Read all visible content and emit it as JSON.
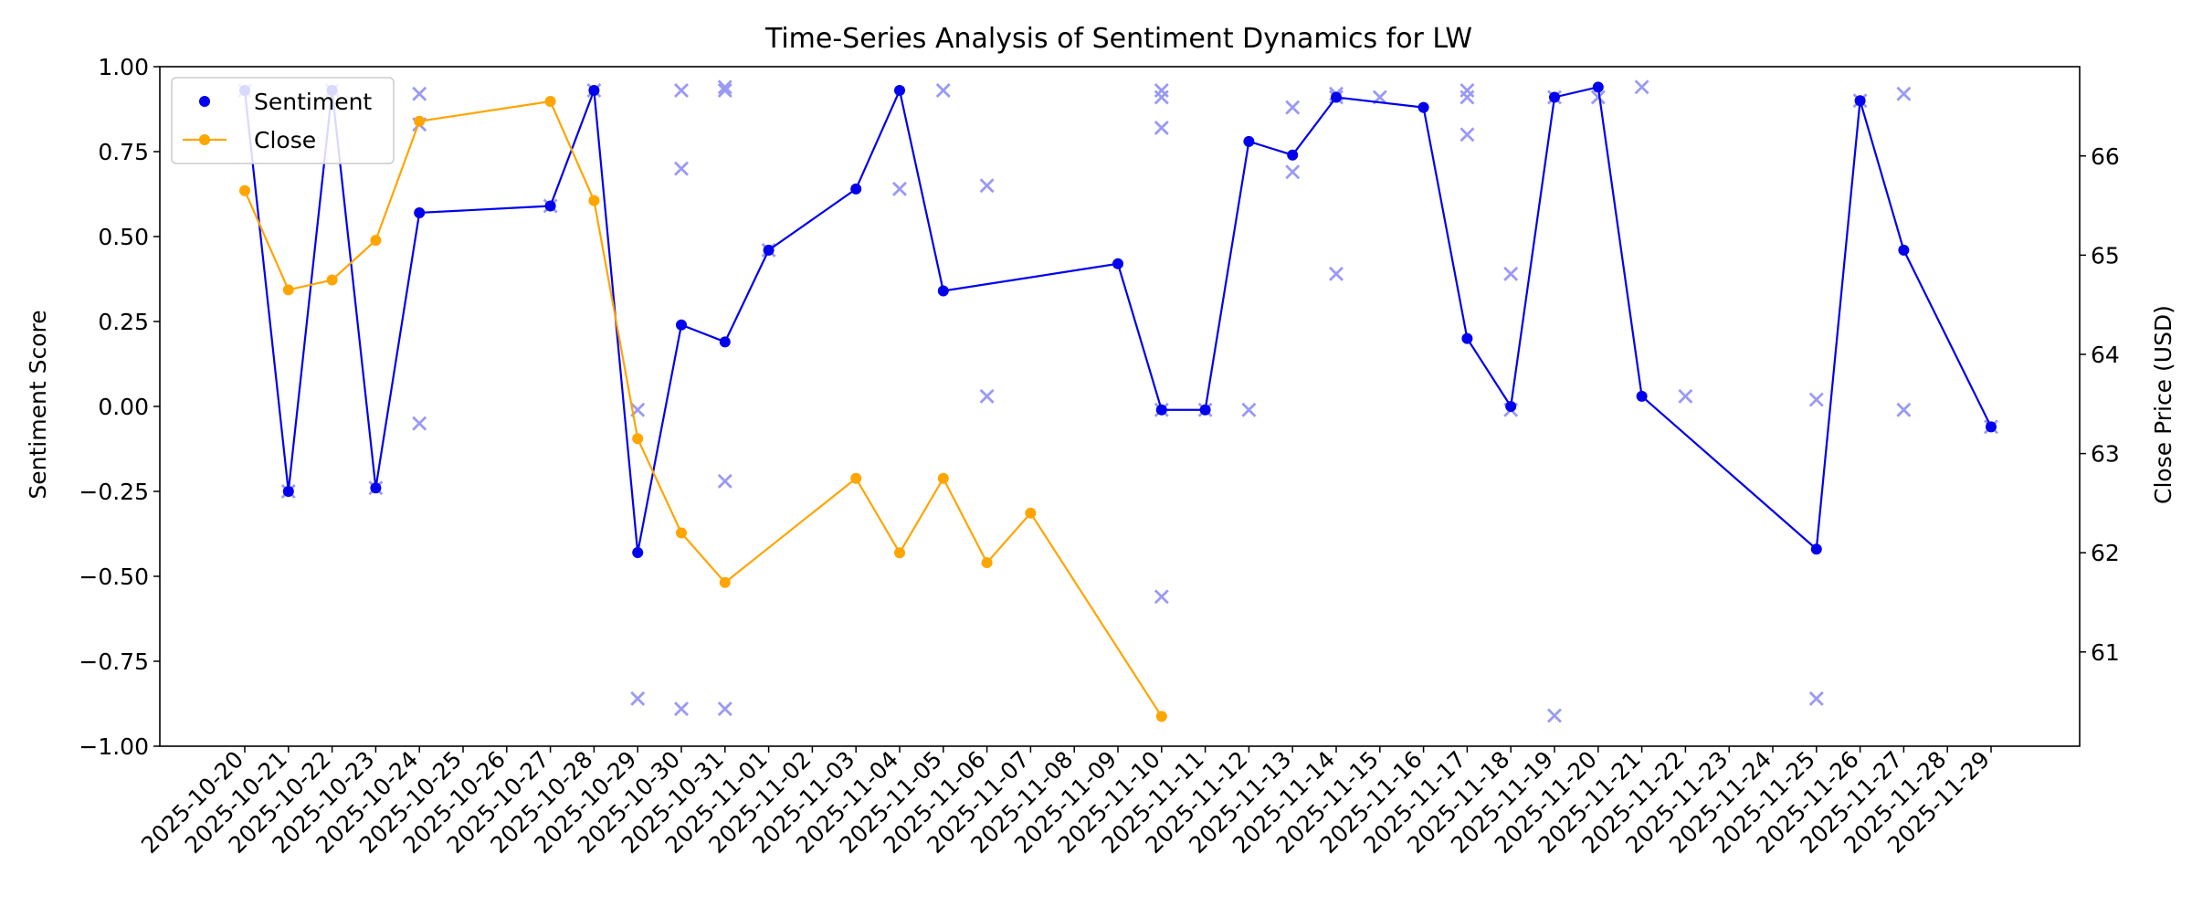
{
  "chart_data": {
    "type": "line",
    "title": "Time-Series Analysis of Sentiment Dynamics for LW",
    "left_axis_label": "Sentiment Score",
    "right_axis_label": "Close Price (USD)",
    "left_ylim": [
      -1.0,
      1.0
    ],
    "right_ylim": [
      60.05,
      66.9
    ],
    "left_ticks": [
      "−1.00",
      "−0.75",
      "−0.50",
      "−0.25",
      "0.00",
      "0.25",
      "0.50",
      "0.75",
      "1.00"
    ],
    "left_tick_values": [
      -1.0,
      -0.75,
      -0.5,
      -0.25,
      0.0,
      0.25,
      0.5,
      0.75,
      1.0
    ],
    "right_ticks": [
      "61",
      "62",
      "63",
      "64",
      "65",
      "66"
    ],
    "right_tick_values": [
      61,
      62,
      63,
      64,
      65,
      66
    ],
    "dates": [
      "2025-10-20",
      "2025-10-21",
      "2025-10-22",
      "2025-10-23",
      "2025-10-24",
      "2025-10-25",
      "2025-10-26",
      "2025-10-27",
      "2025-10-28",
      "2025-10-29",
      "2025-10-30",
      "2025-10-31",
      "2025-11-01",
      "2025-11-02",
      "2025-11-03",
      "2025-11-04",
      "2025-11-05",
      "2025-11-06",
      "2025-11-07",
      "2025-11-08",
      "2025-11-09",
      "2025-11-10",
      "2025-11-11",
      "2025-11-12",
      "2025-11-13",
      "2025-11-14",
      "2025-11-15",
      "2025-11-16",
      "2025-11-17",
      "2025-11-18",
      "2025-11-19",
      "2025-11-20",
      "2025-11-21",
      "2025-11-22",
      "2025-11-23",
      "2025-11-24",
      "2025-11-25",
      "2025-11-26",
      "2025-11-27",
      "2025-11-28",
      "2025-11-29"
    ],
    "legend": {
      "placement": "top-left",
      "entries": [
        "Sentiment",
        "Close"
      ]
    },
    "colors": {
      "sentiment": "#0000ee",
      "close": "#ffa500",
      "raw_points": "#9a9af5"
    },
    "series": [
      {
        "name": "Sentiment",
        "axis": "left",
        "x": [
          "2025-10-20",
          "2025-10-21",
          "2025-10-22",
          "2025-10-23",
          "2025-10-24",
          "2025-10-27",
          "2025-10-28",
          "2025-10-29",
          "2025-10-30",
          "2025-10-31",
          "2025-11-01",
          "2025-11-03",
          "2025-11-04",
          "2025-11-05",
          "2025-11-09",
          "2025-11-10",
          "2025-11-11",
          "2025-11-12",
          "2025-11-13",
          "2025-11-14",
          "2025-11-16",
          "2025-11-17",
          "2025-11-18",
          "2025-11-19",
          "2025-11-20",
          "2025-11-21",
          "2025-11-25",
          "2025-11-26",
          "2025-11-27",
          "2025-11-29"
        ],
        "y": [
          0.93,
          -0.25,
          0.93,
          -0.24,
          0.57,
          0.59,
          0.93,
          -0.43,
          0.24,
          0.19,
          0.46,
          0.64,
          0.93,
          0.34,
          0.42,
          -0.01,
          -0.01,
          0.78,
          0.74,
          0.91,
          0.88,
          0.2,
          0.0,
          0.91,
          0.94,
          0.03,
          -0.42,
          0.9,
          0.46,
          -0.06
        ]
      },
      {
        "name": "Close",
        "axis": "right",
        "x": [
          "2025-10-20",
          "2025-10-21",
          "2025-10-22",
          "2025-10-23",
          "2025-10-24",
          "2025-10-27",
          "2025-10-28",
          "2025-10-29",
          "2025-10-30",
          "2025-10-31",
          "2025-11-03",
          "2025-11-04",
          "2025-11-05",
          "2025-11-06",
          "2025-11-07",
          "2025-11-10"
        ],
        "y": [
          65.65,
          64.65,
          64.75,
          65.15,
          66.35,
          66.55,
          65.55,
          63.15,
          62.2,
          61.7,
          62.75,
          62.0,
          62.75,
          61.9,
          62.4,
          60.35
        ]
      }
    ],
    "raw_points": {
      "x": [
        "2025-10-20",
        "2025-10-21",
        "2025-10-22",
        "2025-10-23",
        "2025-10-24",
        "2025-10-24",
        "2025-10-24",
        "2025-10-27",
        "2025-10-28",
        "2025-10-29",
        "2025-10-29",
        "2025-10-30",
        "2025-10-30",
        "2025-10-30",
        "2025-10-31",
        "2025-10-31",
        "2025-10-31",
        "2025-10-31",
        "2025-11-01",
        "2025-11-04",
        "2025-11-05",
        "2025-11-06",
        "2025-11-06",
        "2025-11-10",
        "2025-11-10",
        "2025-11-10",
        "2025-11-10",
        "2025-11-10",
        "2025-11-11",
        "2025-11-12",
        "2025-11-13",
        "2025-11-13",
        "2025-11-14",
        "2025-11-14",
        "2025-11-14",
        "2025-11-15",
        "2025-11-17",
        "2025-11-17",
        "2025-11-17",
        "2025-11-18",
        "2025-11-18",
        "2025-11-19",
        "2025-11-19",
        "2025-11-20",
        "2025-11-21",
        "2025-11-22",
        "2025-11-25",
        "2025-11-25",
        "2025-11-26",
        "2025-11-27",
        "2025-11-27",
        "2025-11-29"
      ],
      "y": [
        0.93,
        -0.25,
        0.93,
        -0.24,
        0.92,
        0.83,
        -0.05,
        0.59,
        0.93,
        -0.01,
        -0.86,
        0.93,
        0.7,
        -0.89,
        0.94,
        0.93,
        -0.22,
        -0.89,
        0.46,
        0.64,
        0.93,
        0.65,
        0.03,
        0.93,
        0.91,
        0.82,
        -0.56,
        -0.01,
        -0.01,
        -0.01,
        0.88,
        0.69,
        0.92,
        0.91,
        0.39,
        0.91,
        0.93,
        0.91,
        0.8,
        0.39,
        -0.01,
        0.91,
        -0.91,
        0.91,
        0.94,
        0.03,
        0.02,
        -0.86,
        0.9,
        0.92,
        -0.01,
        -0.06
      ]
    }
  }
}
